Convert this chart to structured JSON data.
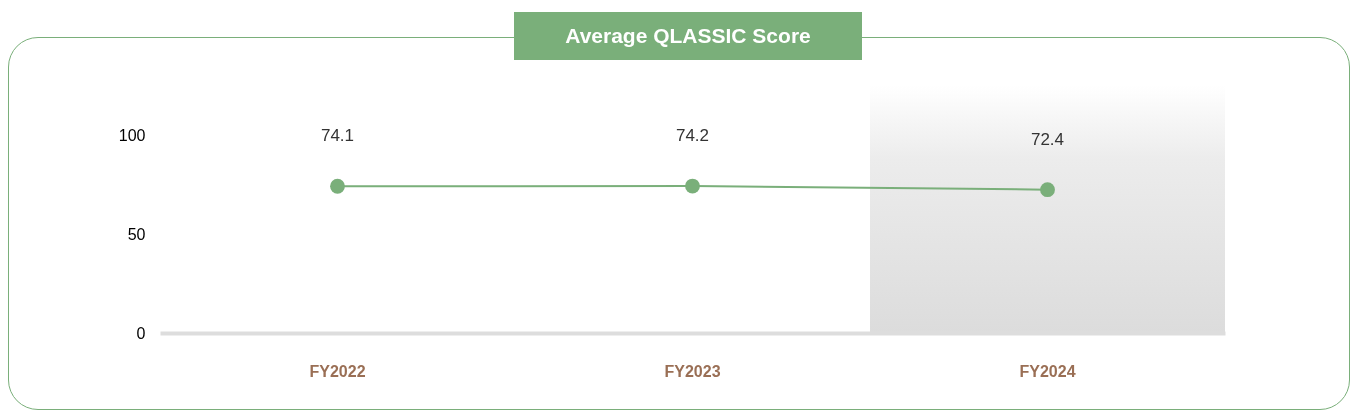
{
  "chart_data": {
    "type": "line",
    "title": "Average QLASSIC Score",
    "categories": [
      "FY2022",
      "FY2023",
      "FY2024"
    ],
    "series": [
      {
        "color": "#7aaf7a",
        "values": [
          74.1,
          74.2,
          72.4
        ]
      }
    ],
    "ylim": [
      0,
      100
    ],
    "yticks": [
      0,
      50,
      100
    ],
    "grid": false,
    "marker": "circle",
    "line_style": "solid",
    "data_labels": true,
    "bands": [
      {
        "axis": "x",
        "from": "FY2024",
        "to": "FY2024",
        "color": "#ececec"
      }
    ]
  }
}
